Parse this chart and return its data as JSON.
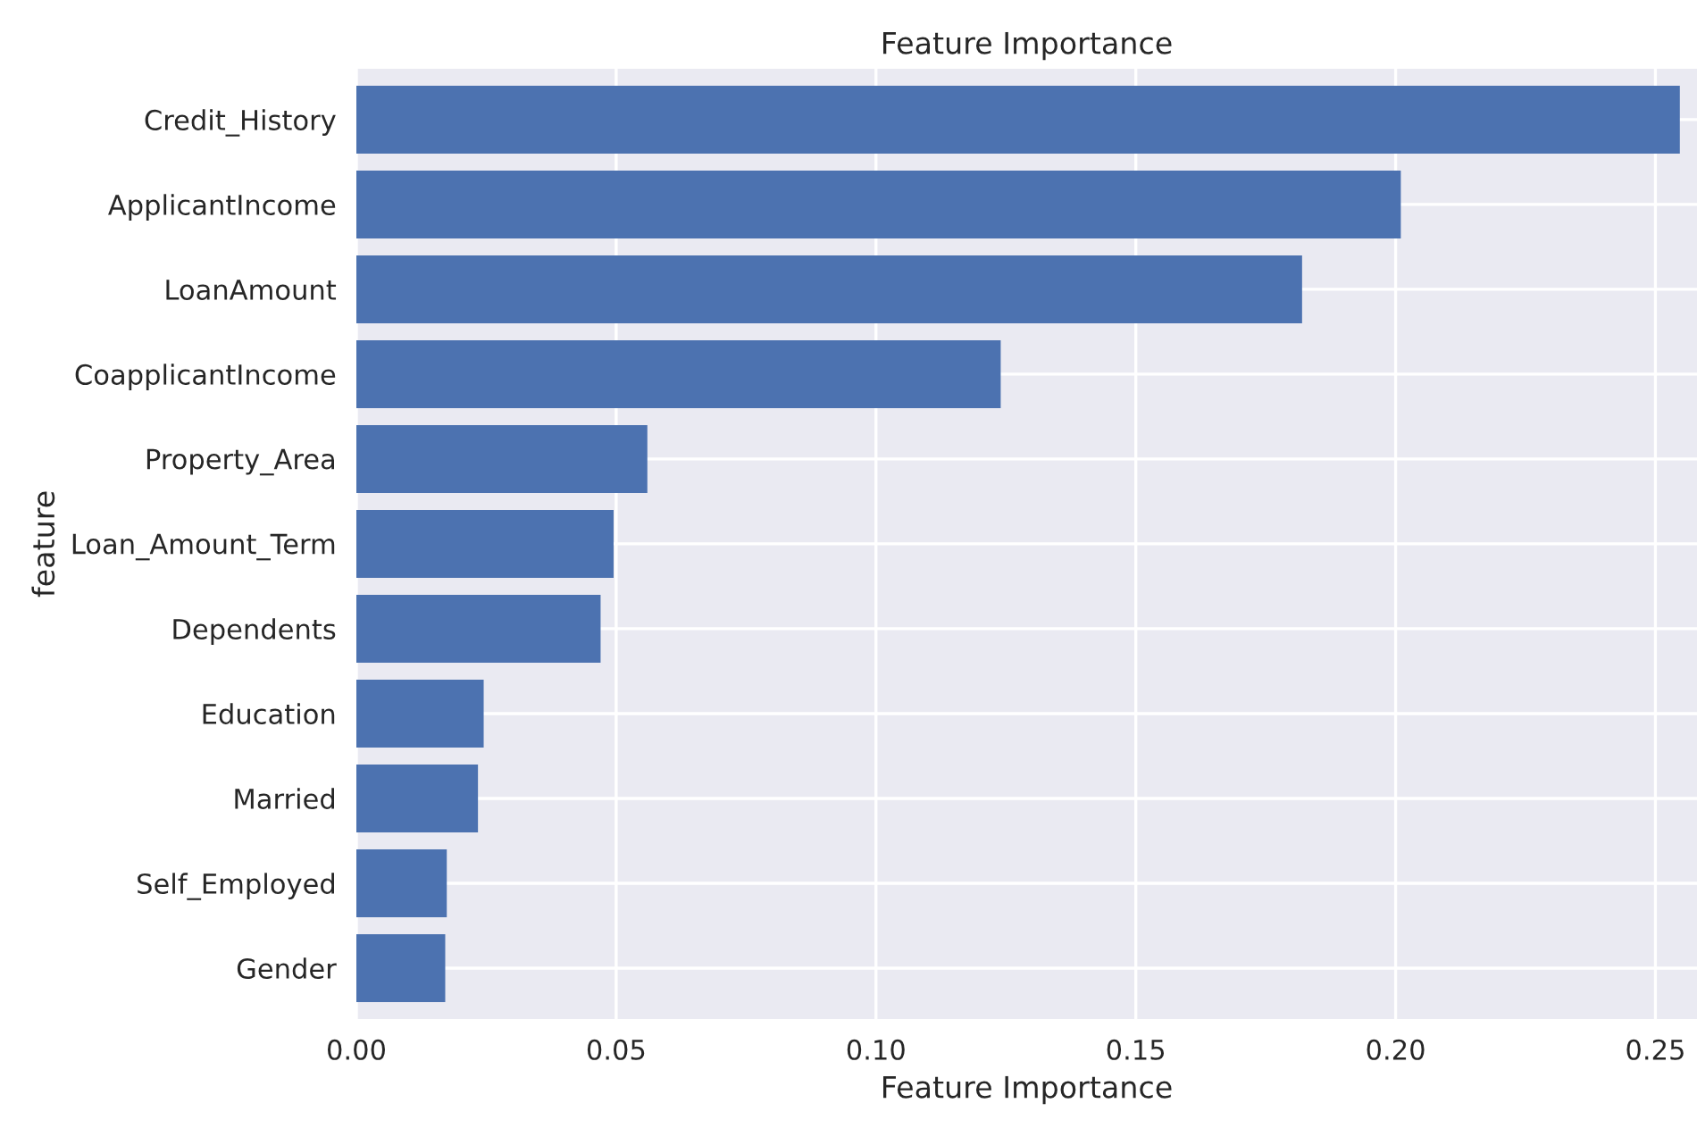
{
  "chart_data": {
    "type": "bar",
    "orientation": "horizontal",
    "title": "Feature Importance",
    "xlabel": "Feature Importance",
    "ylabel": "feature",
    "categories": [
      "Credit_History",
      "ApplicantIncome",
      "LoanAmount",
      "CoapplicantIncome",
      "Property_Area",
      "Loan_Amount_Term",
      "Dependents",
      "Education",
      "Married",
      "Self_Employed",
      "Gender"
    ],
    "values": [
      0.2547,
      0.201,
      0.182,
      0.124,
      0.056,
      0.0495,
      0.047,
      0.0245,
      0.0234,
      0.0174,
      0.0171
    ],
    "color": "#4c72b0",
    "xlim": [
      0,
      0.258
    ],
    "xticks": [
      {
        "value": 0,
        "label": "0.00"
      },
      {
        "value": 0.05,
        "label": "0.05"
      },
      {
        "value": 0.1,
        "label": "0.10"
      },
      {
        "value": 0.15,
        "label": "0.15"
      },
      {
        "value": 0.2,
        "label": "0.20"
      },
      {
        "value": 0.25,
        "label": "0.25"
      }
    ],
    "grid": true
  }
}
